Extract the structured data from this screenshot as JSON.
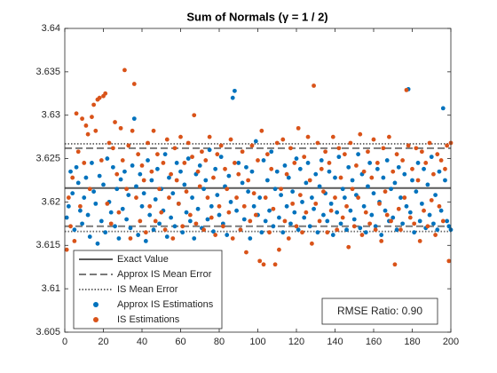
{
  "chart_data": {
    "type": "scatter",
    "title": "Sum of Normals (γ = 1 / 2)",
    "annotation": "RMSE Ratio: 0.90",
    "xlim": [
      0,
      200
    ],
    "xticks": [
      0,
      20,
      40,
      60,
      80,
      100,
      120,
      140,
      160,
      180,
      200
    ],
    "ylim": [
      3.605,
      3.64
    ],
    "yticks": [
      3.605,
      3.61,
      3.615,
      3.62,
      3.625,
      3.63,
      3.635,
      3.64
    ],
    "legend": "lower left",
    "reference_lines": [
      {
        "name": "Exact Value",
        "color": "#5a5a5a",
        "style": "solid",
        "values": [
          3.6216
        ]
      },
      {
        "name": "Approx IS Mean Error",
        "color": "#7a7a7a",
        "style": "dashed",
        "values": [
          3.6172,
          3.6262
        ]
      },
      {
        "name": "IS Mean Error",
        "color": "#6a6a6a",
        "style": "dotted",
        "values": [
          3.6166,
          3.6267
        ]
      }
    ],
    "x": [
      1,
      2,
      3,
      4,
      5,
      6,
      7,
      8,
      9,
      10,
      11,
      12,
      13,
      14,
      15,
      16,
      17,
      18,
      19,
      20,
      21,
      22,
      23,
      24,
      25,
      26,
      27,
      28,
      29,
      30,
      31,
      32,
      33,
      34,
      35,
      36,
      37,
      38,
      39,
      40,
      41,
      42,
      43,
      44,
      45,
      46,
      47,
      48,
      49,
      50,
      51,
      52,
      53,
      54,
      55,
      56,
      57,
      58,
      59,
      60,
      61,
      62,
      63,
      64,
      65,
      66,
      67,
      68,
      69,
      70,
      71,
      72,
      73,
      74,
      75,
      76,
      77,
      78,
      79,
      80,
      81,
      82,
      83,
      84,
      85,
      86,
      87,
      88,
      89,
      90,
      91,
      92,
      93,
      94,
      95,
      96,
      97,
      98,
      99,
      100,
      101,
      102,
      103,
      104,
      105,
      106,
      107,
      108,
      109,
      110,
      111,
      112,
      113,
      114,
      115,
      116,
      117,
      118,
      119,
      120,
      121,
      122,
      123,
      124,
      125,
      126,
      127,
      128,
      129,
      130,
      131,
      132,
      133,
      134,
      135,
      136,
      137,
      138,
      139,
      140,
      141,
      142,
      143,
      144,
      145,
      146,
      147,
      148,
      149,
      150,
      151,
      152,
      153,
      154,
      155,
      156,
      157,
      158,
      159,
      160,
      161,
      162,
      163,
      164,
      165,
      166,
      167,
      168,
      169,
      170,
      171,
      172,
      173,
      174,
      175,
      176,
      177,
      178,
      179,
      180,
      181,
      182,
      183,
      184,
      185,
      186,
      187,
      188,
      189,
      190,
      191,
      192,
      193,
      194,
      195,
      196,
      197,
      198,
      199,
      200
    ],
    "series": [
      {
        "name": "Approx IS Estimations",
        "color": "#0072bd",
        "values": [
          3.6182,
          3.6195,
          3.6235,
          3.621,
          3.6168,
          3.624,
          3.6222,
          3.619,
          3.6175,
          3.6205,
          3.6228,
          3.6185,
          3.616,
          3.6245,
          3.6212,
          3.6198,
          3.6152,
          3.623,
          3.6178,
          3.622,
          3.6165,
          3.625,
          3.62,
          3.6188,
          3.624,
          3.6172,
          3.6215,
          3.6158,
          3.6226,
          3.6192,
          3.6235,
          3.618,
          3.6208,
          3.617,
          3.6242,
          3.6296,
          3.6218,
          3.6162,
          3.6232,
          3.6195,
          3.621,
          3.6155,
          3.6248,
          3.6185,
          3.6225,
          3.6168,
          3.6203,
          3.6238,
          3.6175,
          3.6215,
          3.619,
          3.6255,
          3.616,
          3.6228,
          3.6182,
          3.621,
          3.6172,
          3.6245,
          3.6198,
          3.6235,
          3.6165,
          3.622,
          3.6188,
          3.625,
          3.6178,
          3.6205,
          3.6158,
          3.6232,
          3.6192,
          3.6242,
          3.617,
          3.6215,
          3.6225,
          3.618,
          3.626,
          3.6195,
          3.6166,
          3.6238,
          3.6208,
          3.6185,
          3.6252,
          3.6175,
          3.6218,
          3.6162,
          3.623,
          3.62,
          3.632,
          3.6328,
          3.619,
          3.6245,
          3.6168,
          3.6222,
          3.618,
          3.624,
          3.6212,
          3.6158,
          3.6235,
          3.6195,
          3.627,
          3.6185,
          3.6205,
          3.6165,
          3.6248,
          3.6178,
          3.6225,
          3.619,
          3.6258,
          3.6172,
          3.6215,
          3.6235,
          3.6182,
          3.6208,
          3.6165,
          3.6242,
          3.6195,
          3.6228,
          3.6175,
          3.6212,
          3.6188,
          3.625,
          3.6168,
          3.6238,
          3.62,
          3.6182,
          3.6222,
          3.6245,
          3.6172,
          3.6205,
          3.6192,
          3.6232,
          3.6165,
          3.6218,
          3.6248,
          3.6185,
          3.621,
          3.6178,
          3.6235,
          3.6198,
          3.6162,
          3.6228,
          3.6188,
          3.6252,
          3.6175,
          3.6215,
          3.6205,
          3.6168,
          3.624,
          3.619,
          3.6225,
          3.618,
          3.6208,
          3.6255,
          3.617,
          3.6232,
          3.6195,
          3.6165,
          3.6218,
          3.6245,
          3.6185,
          3.621,
          3.6172,
          3.6238,
          3.62,
          3.6162,
          3.6228,
          3.619,
          3.6248,
          3.6178,
          3.6215,
          3.6182,
          3.6222,
          3.6168,
          3.624,
          3.6205,
          3.6175,
          3.6232,
          3.6195,
          3.633,
          3.6188,
          3.6225,
          3.6165,
          3.6212,
          3.6245,
          3.6178,
          3.6198,
          3.6238,
          3.617,
          3.622,
          3.6185,
          3.6252,
          3.6175,
          3.6208,
          3.6168,
          3.6235,
          3.619,
          3.6308,
          3.6225,
          3.6178,
          3.6172,
          3.6168
        ]
      },
      {
        "name": "IS Estimations",
        "color": "#d95319",
        "values": [
          3.6145,
          3.6205,
          3.6172,
          3.6228,
          3.6155,
          3.6302,
          3.6258,
          3.6195,
          3.6296,
          3.6245,
          3.6288,
          3.6278,
          3.6215,
          3.6298,
          3.6312,
          3.6282,
          3.6318,
          3.632,
          3.6248,
          3.6322,
          3.6325,
          3.6198,
          3.6268,
          3.6175,
          3.6262,
          3.6292,
          3.6232,
          3.6188,
          3.6285,
          3.6248,
          3.6352,
          3.6215,
          3.6265,
          3.6158,
          3.6282,
          3.6336,
          3.6205,
          3.6255,
          3.6178,
          3.6242,
          3.6225,
          3.6165,
          3.6268,
          3.6195,
          3.6235,
          3.6282,
          3.6178,
          3.6255,
          3.6215,
          3.6188,
          3.6245,
          3.6168,
          3.6272,
          3.6205,
          3.6232,
          3.6158,
          3.6262,
          3.6225,
          3.6198,
          3.6275,
          3.6172,
          3.6245,
          3.6212,
          3.6268,
          3.6185,
          3.6252,
          3.63,
          3.6175,
          3.6235,
          3.6218,
          3.6258,
          3.6168,
          3.6248,
          3.6205,
          3.6275,
          3.6182,
          3.6228,
          3.6162,
          3.6255,
          3.6195,
          3.6265,
          3.6172,
          3.6238,
          3.6215,
          3.6188,
          3.6272,
          3.6158,
          3.6245,
          3.6205,
          3.6232,
          3.6168,
          3.6258,
          3.6195,
          3.6142,
          3.6225,
          3.6178,
          3.6265,
          3.621,
          3.6185,
          3.6248,
          3.6132,
          3.6282,
          3.6128,
          3.6205,
          3.6255,
          3.6165,
          3.6238,
          3.6192,
          3.6128,
          3.6268,
          3.6145,
          3.6215,
          3.6272,
          3.6178,
          3.6232,
          3.6158,
          3.6262,
          3.6198,
          3.6245,
          3.6172,
          3.6285,
          3.6208,
          3.6165,
          3.6252,
          3.6188,
          3.6275,
          3.6225,
          3.6152,
          3.6334,
          3.6198,
          3.6268,
          3.6178,
          3.6238,
          3.6212,
          3.6258,
          3.6165,
          3.6245,
          3.619,
          3.6275,
          3.6205,
          3.6168,
          3.6262,
          3.6228,
          3.6182,
          3.6255,
          3.6195,
          3.6148,
          3.6268,
          3.6215,
          3.6172,
          3.6242,
          3.6205,
          3.6278,
          3.6162,
          3.6235,
          3.6188,
          3.6258,
          3.6175,
          3.6228,
          3.6272,
          3.6168,
          3.6245,
          3.6198,
          3.6155,
          3.6262,
          3.6212,
          3.6185,
          3.6275,
          3.6178,
          3.6235,
          3.6128,
          3.6255,
          3.6192,
          3.6168,
          3.6248,
          3.6205,
          3.6329,
          3.6265,
          3.6182,
          3.6238,
          3.6175,
          3.6262,
          3.6225,
          3.6155,
          3.6258,
          3.619,
          3.6245,
          3.6172,
          3.6268,
          3.6202,
          3.6232,
          3.6162,
          3.6255,
          3.6195,
          3.6248,
          3.6178,
          3.6238,
          3.6265,
          3.6132,
          3.6268
        ]
      }
    ]
  }
}
